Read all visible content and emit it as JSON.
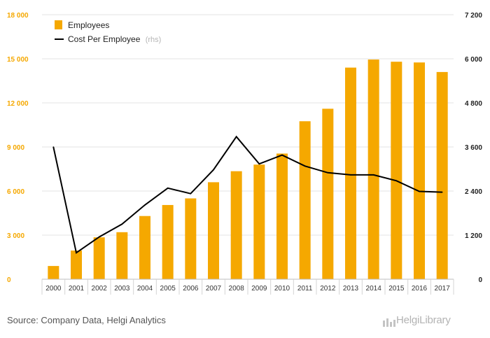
{
  "chart_data": {
    "type": "bar",
    "title": "",
    "xlabel": "",
    "ylabel": "",
    "categories": [
      "2000",
      "2001",
      "2002",
      "2003",
      "2004",
      "2005",
      "2006",
      "2007",
      "2008",
      "2009",
      "2010",
      "2011",
      "2012",
      "2013",
      "2014",
      "2015",
      "2016",
      "2017"
    ],
    "y_left": {
      "ylim": [
        0,
        18000
      ],
      "ticks": [
        0,
        3000,
        6000,
        9000,
        12000,
        15000,
        18000
      ],
      "tick_labels": [
        "0",
        "3 000",
        "6 000",
        "9 000",
        "12 000",
        "15 000",
        "18 000"
      ]
    },
    "y_right": {
      "ylim": [
        0,
        7200
      ],
      "ticks": [
        0,
        1200,
        2400,
        3600,
        4800,
        6000,
        7200
      ],
      "tick_labels": [
        "0",
        "1 200",
        "2 400",
        "3 600",
        "4 800",
        "6 000",
        "7 200"
      ]
    },
    "series": [
      {
        "name": "Employees",
        "type": "bar",
        "axis": "left",
        "color": "#f5a800",
        "values": [
          900,
          1950,
          2850,
          3200,
          4300,
          5050,
          5500,
          6600,
          7350,
          7800,
          8550,
          10750,
          11600,
          14400,
          14950,
          14800,
          14750,
          14100
        ]
      },
      {
        "name": "Cost Per Employee",
        "name_suffix": "(rhs)",
        "type": "line",
        "axis": "right",
        "color": "#000000",
        "values": [
          3600,
          720,
          1150,
          1500,
          2020,
          2480,
          2330,
          2980,
          3880,
          3140,
          3380,
          3080,
          2900,
          2840,
          2840,
          2680,
          2390,
          2370
        ]
      }
    ],
    "legend_position": "top-left",
    "grid": true
  },
  "footer": {
    "source": "Source: Company Data, Helgi Analytics",
    "logo_text": "HelgiLibrary"
  }
}
